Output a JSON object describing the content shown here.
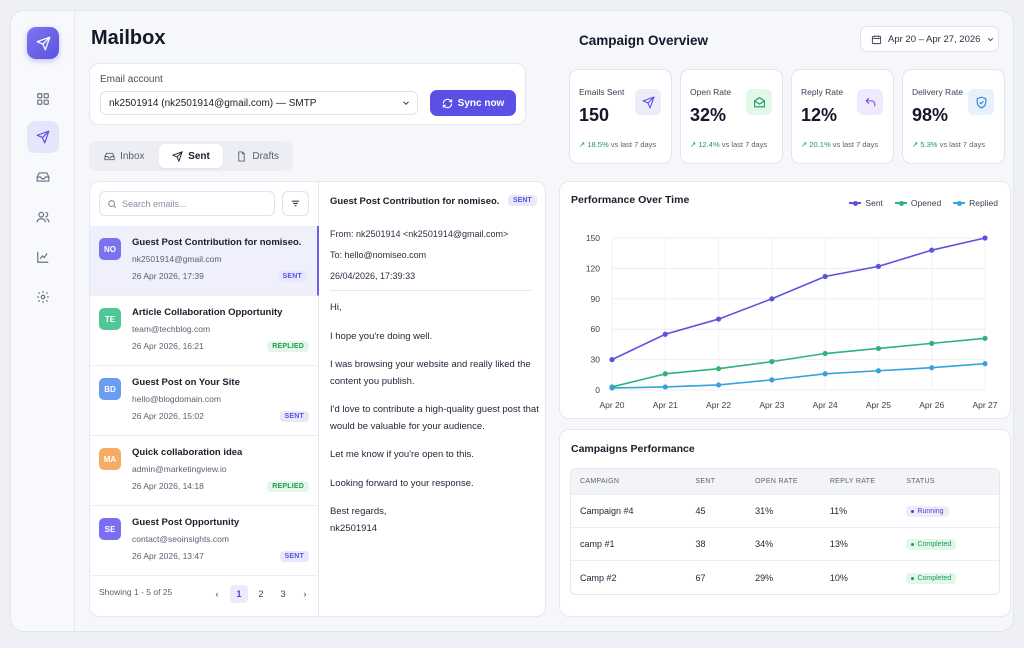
{
  "header": {
    "title": "Mailbox"
  },
  "sidebar": {
    "items": [
      {
        "name": "dashboard",
        "icon": "grid-icon",
        "active": false
      },
      {
        "name": "campaigns",
        "icon": "send-icon",
        "active": true
      },
      {
        "name": "inbox",
        "icon": "inbox-icon",
        "active": false
      },
      {
        "name": "contacts",
        "icon": "users-icon",
        "active": false
      },
      {
        "name": "analytics",
        "icon": "chart-icon",
        "active": false
      },
      {
        "name": "settings",
        "icon": "gear-icon",
        "active": false
      }
    ]
  },
  "account": {
    "label": "Email account",
    "selected": "nk2501914 (nk2501914@gmail.com) — SMTP",
    "sync_label": "Sync now"
  },
  "tabs": [
    {
      "label": "Inbox",
      "icon": "inbox-icon"
    },
    {
      "label": "Sent",
      "icon": "send-icon"
    },
    {
      "label": "Drafts",
      "icon": "file-icon"
    }
  ],
  "search": {
    "placeholder": "Search emails..."
  },
  "mails": [
    {
      "initials": "NO",
      "color": "#7b73ee",
      "subject": "Guest Post Contribution for nomiseo.",
      "email": "nk2501914@gmail.com",
      "date": "26 Apr 2026, 17:39",
      "status": "SENT"
    },
    {
      "initials": "TE",
      "color": "#4fc796",
      "subject": "Article Collaboration Opportunity",
      "email": "team@techblog.com",
      "date": "26 Apr 2026, 16:21",
      "status": "REPLIED"
    },
    {
      "initials": "BD",
      "color": "#6a9cf2",
      "subject": "Guest Post on Your Site",
      "email": "hello@blogdomain.com",
      "date": "26 Apr 2026, 15:02",
      "status": "SENT"
    },
    {
      "initials": "MA",
      "color": "#f4ad62",
      "subject": "Quick collaboration idea",
      "email": "admin@marketingview.io",
      "date": "26 Apr 2026, 14:18",
      "status": "REPLIED"
    },
    {
      "initials": "SE",
      "color": "#7b6ef0",
      "subject": "Guest Post Opportunity",
      "email": "contact@seoinsights.com",
      "date": "26 Apr 2026, 13:47",
      "status": "SENT"
    }
  ],
  "list_footer": {
    "showing": "Showing 1 - 5 of 25",
    "pages": [
      "1",
      "2",
      "3"
    ],
    "prev": "‹",
    "next": "›"
  },
  "reader": {
    "subject": "Guest Post Contribution for nomiseo.",
    "badge": "SENT",
    "from": "From:  nk2501914 <nk2501914@gmail.com>",
    "to": "To:   hello@nomiseo.com",
    "date": "26/04/2026, 17:39:33",
    "body": [
      "Hi,",
      "I hope you're doing well.",
      "I was browsing your website and really liked the content you publish.",
      "I'd love to contribute a high-quality guest post that would be valuable for your audience.",
      "Let me know if you're open to this.",
      "Looking forward to your response.",
      "Best regards,\nnk2501914"
    ]
  },
  "overview": {
    "title": "Campaign Overview",
    "date_range": "Apr 20 – Apr 27, 2026",
    "stats": [
      {
        "label": "Emails Sent",
        "value": "150",
        "trend": "↗ 18.5%",
        "suffix": "vs last 7 days",
        "icon": "send-icon",
        "icon_bg": "#ececfb",
        "icon_color": "#5a50e6"
      },
      {
        "label": "Open Rate",
        "value": "32%",
        "trend": "↗ 12.4%",
        "suffix": "vs last 7 days",
        "icon": "mail-open-icon",
        "icon_bg": "#e3f6ea",
        "icon_color": "#1d9a56"
      },
      {
        "label": "Reply Rate",
        "value": "12%",
        "trend": "↗ 20.1%",
        "suffix": "vs last 7 days",
        "icon": "reply-icon",
        "icon_bg": "#efeafb",
        "icon_color": "#6a4fd8"
      },
      {
        "label": "Delivery Rate",
        "value": "98%",
        "trend": "↗ 5.3%",
        "suffix": "vs last 7 days",
        "icon": "shield-check-icon",
        "icon_bg": "#e6f1fc",
        "icon_color": "#2f7fd6"
      }
    ]
  },
  "chart_data": {
    "type": "line",
    "title": "Performance Over Time",
    "categories": [
      "Apr 20",
      "Apr 21",
      "Apr 22",
      "Apr 23",
      "Apr 24",
      "Apr 25",
      "Apr 26",
      "Apr 27"
    ],
    "ylim": [
      0,
      150
    ],
    "yticks": [
      0,
      30,
      60,
      90,
      120,
      150
    ],
    "grid": true,
    "legend": "top-right",
    "series": [
      {
        "name": "Sent",
        "color": "#5b53e0",
        "values": [
          30,
          55,
          70,
          90,
          112,
          122,
          138,
          150
        ]
      },
      {
        "name": "Opened",
        "color": "#2fb37a",
        "values": [
          3,
          16,
          21,
          28,
          36,
          41,
          46,
          51
        ]
      },
      {
        "name": "Replied",
        "color": "#36a2de",
        "values": [
          2,
          3,
          5,
          10,
          16,
          19,
          22,
          26
        ]
      }
    ]
  },
  "campaigns": {
    "title": "Campaigns Performance",
    "headers": [
      "CAMPAIGN",
      "SENT",
      "OPEN RATE",
      "REPLY RATE",
      "STATUS"
    ],
    "rows": [
      {
        "name": "Campaign #4",
        "sent": "45",
        "open": "31%",
        "reply": "11%",
        "status": "Running",
        "kind": "run"
      },
      {
        "name": "camp #1",
        "sent": "38",
        "open": "34%",
        "reply": "13%",
        "status": "Completed",
        "kind": "done"
      },
      {
        "name": "Camp #2",
        "sent": "67",
        "open": "29%",
        "reply": "10%",
        "status": "Completed",
        "kind": "done"
      }
    ]
  }
}
